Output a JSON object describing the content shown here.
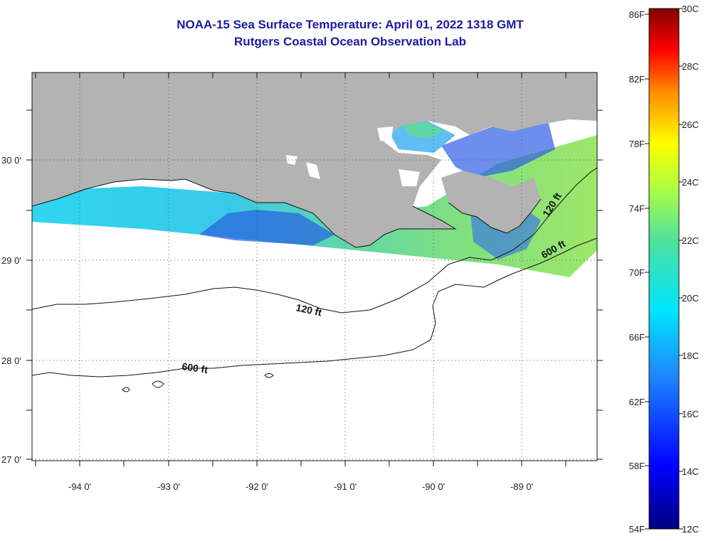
{
  "title": {
    "line1": "NOAA-15 Sea Surface Temperature:  April 01, 2022 1318 GMT",
    "line2": "Rutgers Coastal Ocean Observation Lab"
  },
  "axes": {
    "lat_labels": [
      "30 0'",
      "29 0'",
      "28 0'",
      "27 0'"
    ],
    "lon_labels": [
      "-94 0'",
      "-93 0'",
      "-92 0'",
      "-91 0'",
      "-90 0'",
      "-89 0'"
    ]
  },
  "contours": {
    "label_120": "120 ft",
    "label_600": "600 ft"
  },
  "colorbar": {
    "fahrenheit": [
      "86F",
      "82F",
      "78F",
      "74F",
      "70F",
      "66F",
      "62F",
      "58F",
      "54F"
    ],
    "celsius": [
      "30C",
      "28C",
      "26C",
      "24C",
      "22C",
      "20C",
      "18C",
      "16C",
      "14C",
      "12C"
    ]
  },
  "colors": {
    "land": "#b3b3b3",
    "title": "#1a1aa6",
    "water_nodata": "#ffffff"
  }
}
